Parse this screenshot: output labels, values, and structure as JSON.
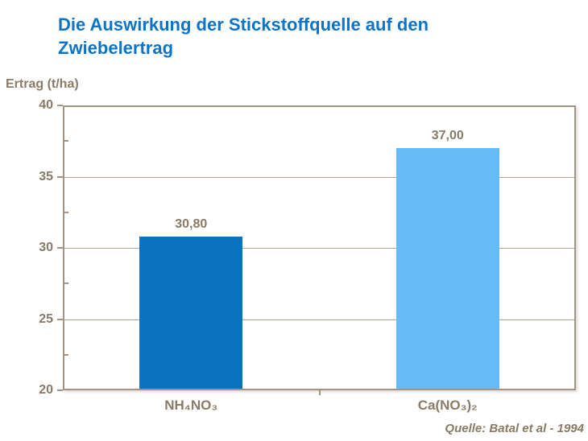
{
  "title": "Die Auswirkung der Stickstoffquelle auf den Zwiebelertrag",
  "source": "Quelle: Batal et al - 1994",
  "colors": {
    "title_blue": "#0d73c6",
    "bar_dark_blue": "#0b72bf",
    "bar_light_blue": "#66bbf7",
    "text_brown": "#8a7a66",
    "axis_line": "#a29383",
    "gridline": "#b3a695"
  },
  "chart_data": {
    "type": "bar",
    "title": "Die Auswirkung der Stickstoffquelle auf den Zwiebelertrag",
    "xlabel": "",
    "ylabel": "Ertrag (t/ha)",
    "categories": [
      "NH₄NO₃",
      "Ca(NO₃)₂"
    ],
    "values": [
      30.8,
      37.0
    ],
    "value_labels": [
      "30,80",
      "37,00"
    ],
    "bar_colors": [
      "#0b72bf",
      "#66bbf7"
    ],
    "ylim": [
      20,
      40
    ],
    "yticks": [
      20,
      25,
      30,
      35,
      40
    ],
    "minor_yticks": [
      22.5,
      27.5,
      32.5,
      37.5
    ],
    "grid": true,
    "legend": "none",
    "source": "Quelle: Batal et al - 1994"
  }
}
